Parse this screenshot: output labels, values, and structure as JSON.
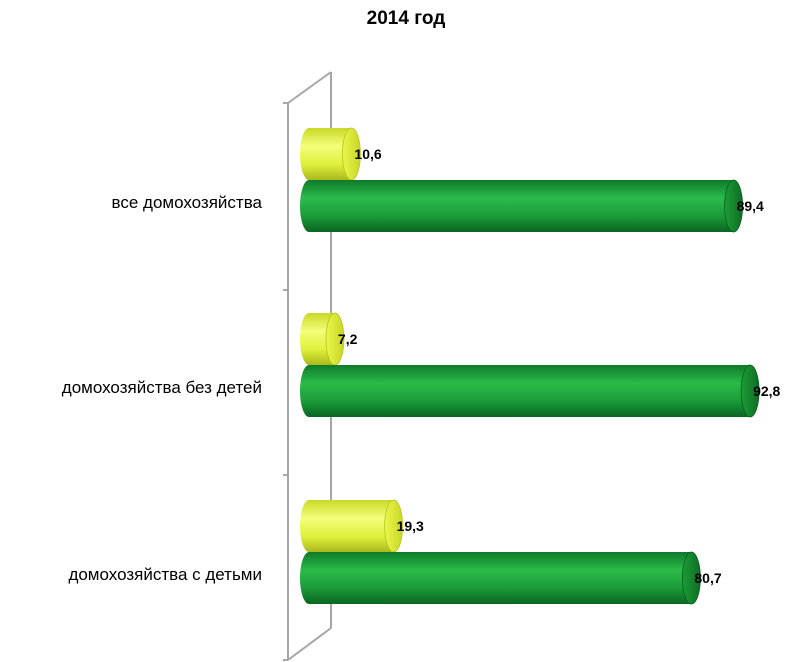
{
  "chart_data": {
    "type": "bar",
    "orientation": "horizontal",
    "style": "3d-cylinder",
    "title": "2014 год",
    "categories": [
      "все домохозяйства",
      "домохозяйства без детей",
      "домохозяйства с детьми"
    ],
    "series": [
      {
        "values": [
          10.6,
          7.2,
          19.3
        ],
        "value_labels": [
          "10,6",
          "7,2",
          "19,3"
        ],
        "color": "#e6f53a"
      },
      {
        "values": [
          89.4,
          92.8,
          80.7
        ],
        "value_labels": [
          "89,4",
          "92,8",
          "80,7"
        ],
        "color": "#1fa23a"
      }
    ],
    "xlim": [
      0,
      100
    ],
    "grid": false,
    "legend": "none"
  }
}
